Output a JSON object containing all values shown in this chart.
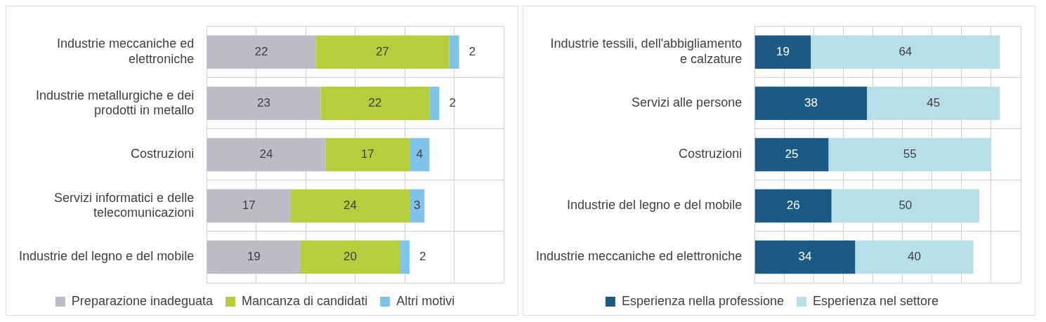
{
  "chart_data": [
    {
      "type": "bar",
      "orientation": "horizontal",
      "stacked": true,
      "data_labels": true,
      "grid": true,
      "legend": "bottom",
      "tick_labels": "y",
      "categories": [
        "Industrie meccaniche ed elettroniche",
        "Industrie metallurgiche e dei prodotti in metallo",
        "Costruzioni",
        "Servizi informatici e delle telecomunicazioni",
        "Industrie del legno e del mobile"
      ],
      "series": [
        {
          "name": "Preparazione inadeguata",
          "color": "#bcbbc7",
          "values": [
            22,
            23,
            24,
            17,
            19
          ]
        },
        {
          "name": "Mancanza di candidati",
          "color": "#b5cf3c",
          "values": [
            27,
            22,
            17,
            24,
            20
          ]
        },
        {
          "name": "Altri motivi",
          "color": "#7fc3ea",
          "values": [
            2,
            2,
            4,
            3,
            2
          ]
        }
      ]
    },
    {
      "type": "bar",
      "orientation": "horizontal",
      "stacked": true,
      "data_labels": true,
      "grid": true,
      "legend": "bottom",
      "tick_labels": "y",
      "categories": [
        "Industrie tessili, dell'abbigliamento e calzature",
        "Servizi alle persone",
        "Costruzioni",
        "Industrie del legno e del mobile",
        "Industrie meccaniche ed elettroniche"
      ],
      "series": [
        {
          "name": "Esperienza nella professione",
          "color": "#1a5a85",
          "values": [
            19,
            38,
            25,
            26,
            34
          ]
        },
        {
          "name": "Esperienza nel settore",
          "color": "#b7dfe8",
          "values": [
            64,
            45,
            55,
            50,
            40
          ]
        }
      ]
    }
  ]
}
